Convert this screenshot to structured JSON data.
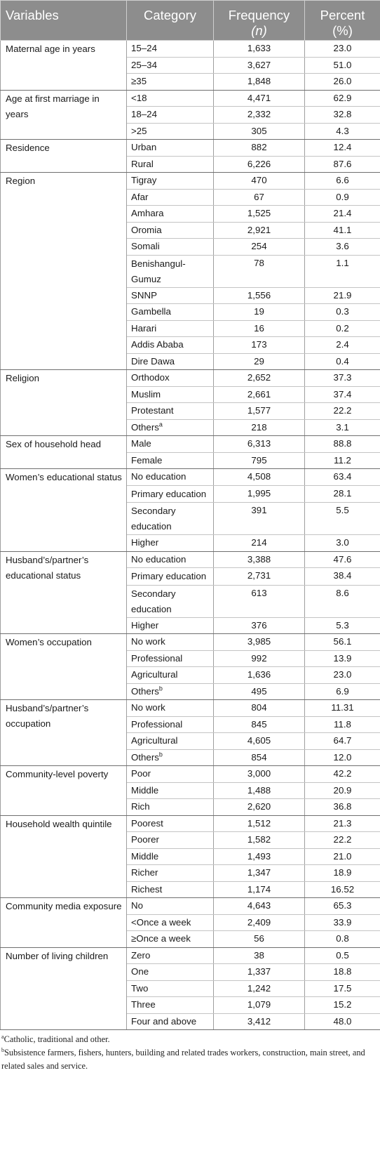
{
  "headers": {
    "variables": "Variables",
    "category": "Category",
    "frequency": "Frequency",
    "frequency_sub": "(n)",
    "percent": "Percent",
    "percent_sub": "(%)"
  },
  "groups": [
    {
      "variable": "Maternal age in years",
      "rows": [
        {
          "category": "15–24",
          "frequency": "1,633",
          "percent": "23.0"
        },
        {
          "category": "25–34",
          "frequency": "3,627",
          "percent": "51.0"
        },
        {
          "category": "≥35",
          "frequency": "1,848",
          "percent": "26.0"
        }
      ]
    },
    {
      "variable": "Age at first marriage in years",
      "rows": [
        {
          "category": "<18",
          "frequency": "4,471",
          "percent": "62.9"
        },
        {
          "category": "18–24",
          "frequency": "2,332",
          "percent": "32.8"
        },
        {
          "category": ">25",
          "frequency": "305",
          "percent": "4.3"
        }
      ]
    },
    {
      "variable": "Residence",
      "rows": [
        {
          "category": "Urban",
          "frequency": "882",
          "percent": "12.4"
        },
        {
          "category": "Rural",
          "frequency": "6,226",
          "percent": "87.6"
        }
      ]
    },
    {
      "variable": "Region",
      "rows": [
        {
          "category": "Tigray",
          "frequency": "470",
          "percent": "6.6"
        },
        {
          "category": "Afar",
          "frequency": "67",
          "percent": "0.9"
        },
        {
          "category": "Amhara",
          "frequency": "1,525",
          "percent": "21.4"
        },
        {
          "category": "Oromia",
          "frequency": "2,921",
          "percent": "41.1"
        },
        {
          "category": "Somali",
          "frequency": "254",
          "percent": "3.6"
        },
        {
          "category": "Benishangul-Gumuz",
          "frequency": "78",
          "percent": "1.1",
          "tall": true
        },
        {
          "category": "SNNP",
          "frequency": "1,556",
          "percent": "21.9"
        },
        {
          "category": "Gambella",
          "frequency": "19",
          "percent": "0.3"
        },
        {
          "category": "Harari",
          "frequency": "16",
          "percent": "0.2"
        },
        {
          "category": "Addis Ababa",
          "frequency": "173",
          "percent": "2.4"
        },
        {
          "category": "Dire Dawa",
          "frequency": "29",
          "percent": "0.4"
        }
      ]
    },
    {
      "variable": "Religion",
      "rows": [
        {
          "category": "Orthodox",
          "frequency": "2,652",
          "percent": "37.3"
        },
        {
          "category": "Muslim",
          "frequency": "2,661",
          "percent": "37.4"
        },
        {
          "category": "Protestant",
          "frequency": "1,577",
          "percent": "22.2"
        },
        {
          "category": "Others",
          "sup": "a",
          "frequency": "218",
          "percent": "3.1"
        }
      ]
    },
    {
      "variable": "Sex of household head",
      "rows": [
        {
          "category": "Male",
          "frequency": "6,313",
          "percent": "88.8"
        },
        {
          "category": "Female",
          "frequency": "795",
          "percent": "11.2"
        }
      ]
    },
    {
      "variable": "Women’s educational status",
      "rows": [
        {
          "category": "No education",
          "frequency": "4,508",
          "percent": "63.4"
        },
        {
          "category": "Primary education",
          "frequency": "1,995",
          "percent": "28.1",
          "tall": true
        },
        {
          "category": "Secondary education",
          "frequency": "391",
          "percent": "5.5",
          "tall": true
        },
        {
          "category": "Higher",
          "frequency": "214",
          "percent": "3.0"
        }
      ]
    },
    {
      "variable": "Husband’s/partner’s educational status",
      "rows": [
        {
          "category": "No education",
          "frequency": "3,388",
          "percent": "47.6"
        },
        {
          "category": "Primary education",
          "frequency": "2,731",
          "percent": "38.4",
          "tall": true
        },
        {
          "category": "Secondary education",
          "frequency": "613",
          "percent": "8.6",
          "tall": true
        },
        {
          "category": "Higher",
          "frequency": "376",
          "percent": "5.3"
        }
      ]
    },
    {
      "variable": "Women’s occupation",
      "rows": [
        {
          "category": "No work",
          "frequency": "3,985",
          "percent": "56.1"
        },
        {
          "category": "Professional",
          "frequency": "992",
          "percent": "13.9"
        },
        {
          "category": "Agricultural",
          "frequency": "1,636",
          "percent": "23.0"
        },
        {
          "category": "Others",
          "sup": "b",
          "frequency": "495",
          "percent": "6.9"
        }
      ]
    },
    {
      "variable": "Husband’s/partner’s occupation",
      "rows": [
        {
          "category": "No work",
          "frequency": "804",
          "percent": "11.31"
        },
        {
          "category": "Professional",
          "frequency": "845",
          "percent": "11.8"
        },
        {
          "category": "Agricultural",
          "frequency": "4,605",
          "percent": "64.7"
        },
        {
          "category": "Others",
          "sup": "b",
          "frequency": "854",
          "percent": "12.0"
        }
      ]
    },
    {
      "variable": "Community-level poverty",
      "rows": [
        {
          "category": "Poor",
          "frequency": "3,000",
          "percent": "42.2"
        },
        {
          "category": "Middle",
          "frequency": "1,488",
          "percent": "20.9"
        },
        {
          "category": "Rich",
          "frequency": "2,620",
          "percent": "36.8"
        }
      ]
    },
    {
      "variable": "Household wealth quintile",
      "rows": [
        {
          "category": "Poorest",
          "frequency": "1,512",
          "percent": "21.3"
        },
        {
          "category": "Poorer",
          "frequency": "1,582",
          "percent": "22.2"
        },
        {
          "category": "Middle",
          "frequency": "1,493",
          "percent": "21.0"
        },
        {
          "category": "Richer",
          "frequency": "1,347",
          "percent": "18.9"
        },
        {
          "category": "Richest",
          "frequency": "1,174",
          "percent": "16.52"
        }
      ]
    },
    {
      "variable": "Community media exposure",
      "rows": [
        {
          "category": "No",
          "frequency": "4,643",
          "percent": "65.3"
        },
        {
          "category": "<Once a week",
          "frequency": "2,409",
          "percent": "33.9"
        },
        {
          "category": "≥Once a week",
          "frequency": "56",
          "percent": "0.8"
        }
      ]
    },
    {
      "variable": "Number of living children",
      "rows": [
        {
          "category": "Zero",
          "frequency": "38",
          "percent": "0.5"
        },
        {
          "category": "One",
          "frequency": "1,337",
          "percent": "18.8"
        },
        {
          "category": "Two",
          "frequency": "1,242",
          "percent": "17.5"
        },
        {
          "category": "Three",
          "frequency": "1,079",
          "percent": "15.2"
        },
        {
          "category": "Four and above",
          "frequency": "3,412",
          "percent": "48.0"
        }
      ]
    }
  ],
  "footnotes": [
    {
      "mark": "a",
      "text": "Catholic, traditional and other."
    },
    {
      "mark": "b",
      "text": "Subsistence farmers, fishers, hunters, building and related trades workers, construction, main street, and related sales and service."
    }
  ]
}
